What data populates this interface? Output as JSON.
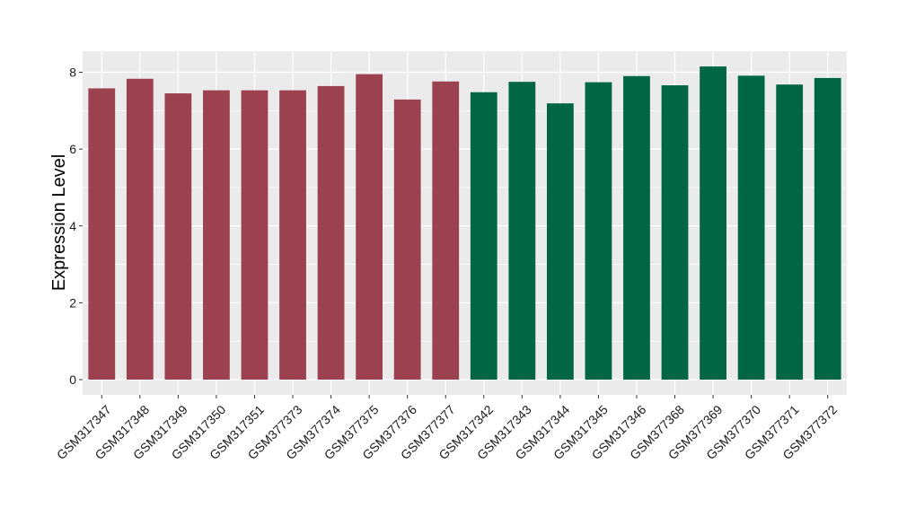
{
  "chart_data": {
    "type": "bar",
    "title": "",
    "xlabel": "",
    "ylabel": "Expression Level",
    "ylim": [
      0,
      8.2
    ],
    "yticks": [
      0,
      2,
      4,
      6,
      8
    ],
    "grid": true,
    "legend": "none",
    "panel_color": "#EBEBEB",
    "gridline_color": "#FFFFFF",
    "categories": [
      "GSM317347",
      "GSM317348",
      "GSM317349",
      "GSM317350",
      "GSM317351",
      "GSM377373",
      "GSM377374",
      "GSM377375",
      "GSM377376",
      "GSM377377",
      "GSM317342",
      "GSM317343",
      "GSM317344",
      "GSM317345",
      "GSM317346",
      "GSM377368",
      "GSM377369",
      "GSM377370",
      "GSM377371",
      "GSM377372"
    ],
    "values": [
      7.58,
      7.83,
      7.45,
      7.53,
      7.53,
      7.53,
      7.64,
      7.95,
      7.29,
      7.76,
      7.48,
      7.75,
      7.19,
      7.74,
      7.9,
      7.66,
      8.15,
      7.91,
      7.68,
      7.85
    ],
    "bar_colors": [
      "#9B4150",
      "#9B4150",
      "#9B4150",
      "#9B4150",
      "#9B4150",
      "#9B4150",
      "#9B4150",
      "#9B4150",
      "#9B4150",
      "#9B4150",
      "#006644",
      "#006644",
      "#006644",
      "#006644",
      "#006644",
      "#006644",
      "#006644",
      "#006644",
      "#006644",
      "#006644"
    ]
  }
}
